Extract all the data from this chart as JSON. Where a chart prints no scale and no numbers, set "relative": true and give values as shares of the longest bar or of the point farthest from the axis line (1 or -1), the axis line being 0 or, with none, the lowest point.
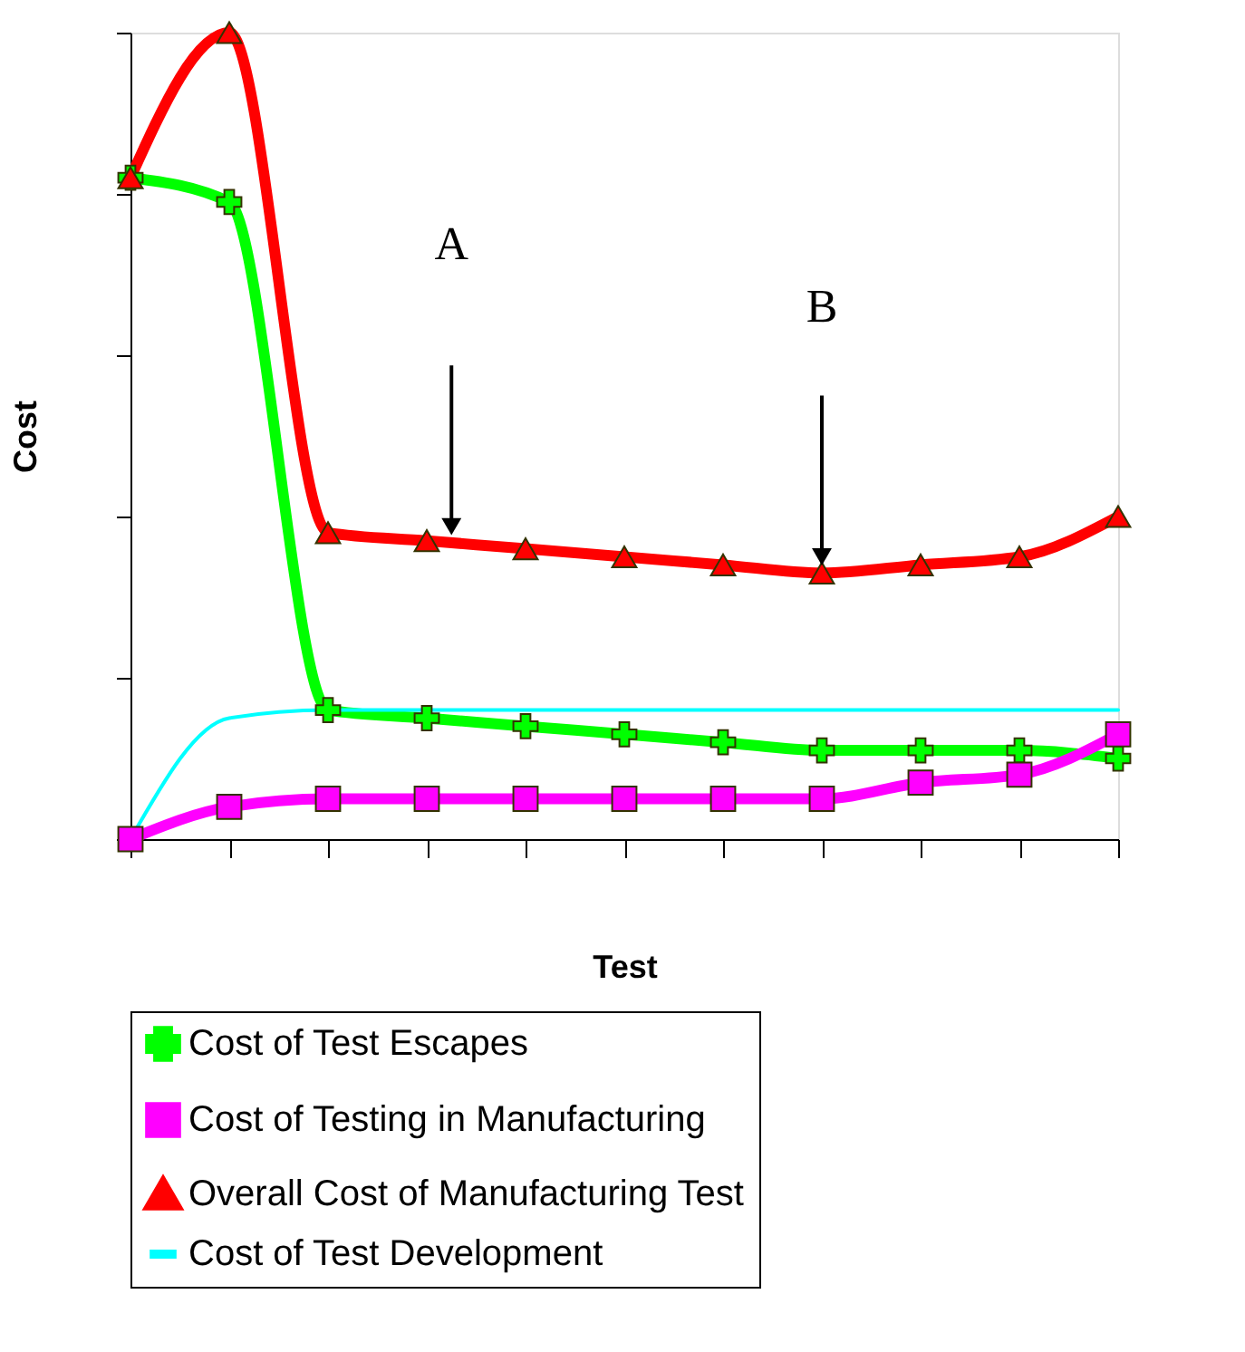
{
  "chart_data": {
    "type": "line",
    "xlabel": "Test",
    "ylabel": "Cost",
    "relative": true,
    "categories": [
      null,
      null,
      null,
      null,
      null,
      null,
      null,
      null,
      null,
      null,
      null
    ],
    "series": [
      {
        "name": "Cost of Test Escapes",
        "color": "#00ff00",
        "marker": "cross",
        "values": [
          0.82,
          0.79,
          0.16,
          0.15,
          0.14,
          0.13,
          0.12,
          0.11,
          0.11,
          0.11,
          0.1
        ]
      },
      {
        "name": "Cost of Testing in Manufacturing",
        "color": "#ff00ff",
        "marker": "square",
        "values": [
          0,
          0.04,
          0.05,
          0.05,
          0.05,
          0.05,
          0.05,
          0.05,
          0.07,
          0.08,
          0.13
        ]
      },
      {
        "name": "Overall Cost of Manufacturing Test",
        "color": "#ff0000",
        "marker": "triangle",
        "values": [
          0.82,
          1,
          0.38,
          0.37,
          0.36,
          0.35,
          0.34,
          0.33,
          0.34,
          0.35,
          0.4
        ]
      },
      {
        "name": "Cost of Test Development",
        "color": "#00ffff",
        "marker": "none",
        "values": [
          0,
          0.15,
          0.16,
          0.16,
          0.16,
          0.16,
          0.16,
          0.16,
          0.16,
          0.16,
          0.16
        ]
      }
    ],
    "annotations": [
      "A",
      "B"
    ],
    "legend": "bottom",
    "grid": false
  }
}
